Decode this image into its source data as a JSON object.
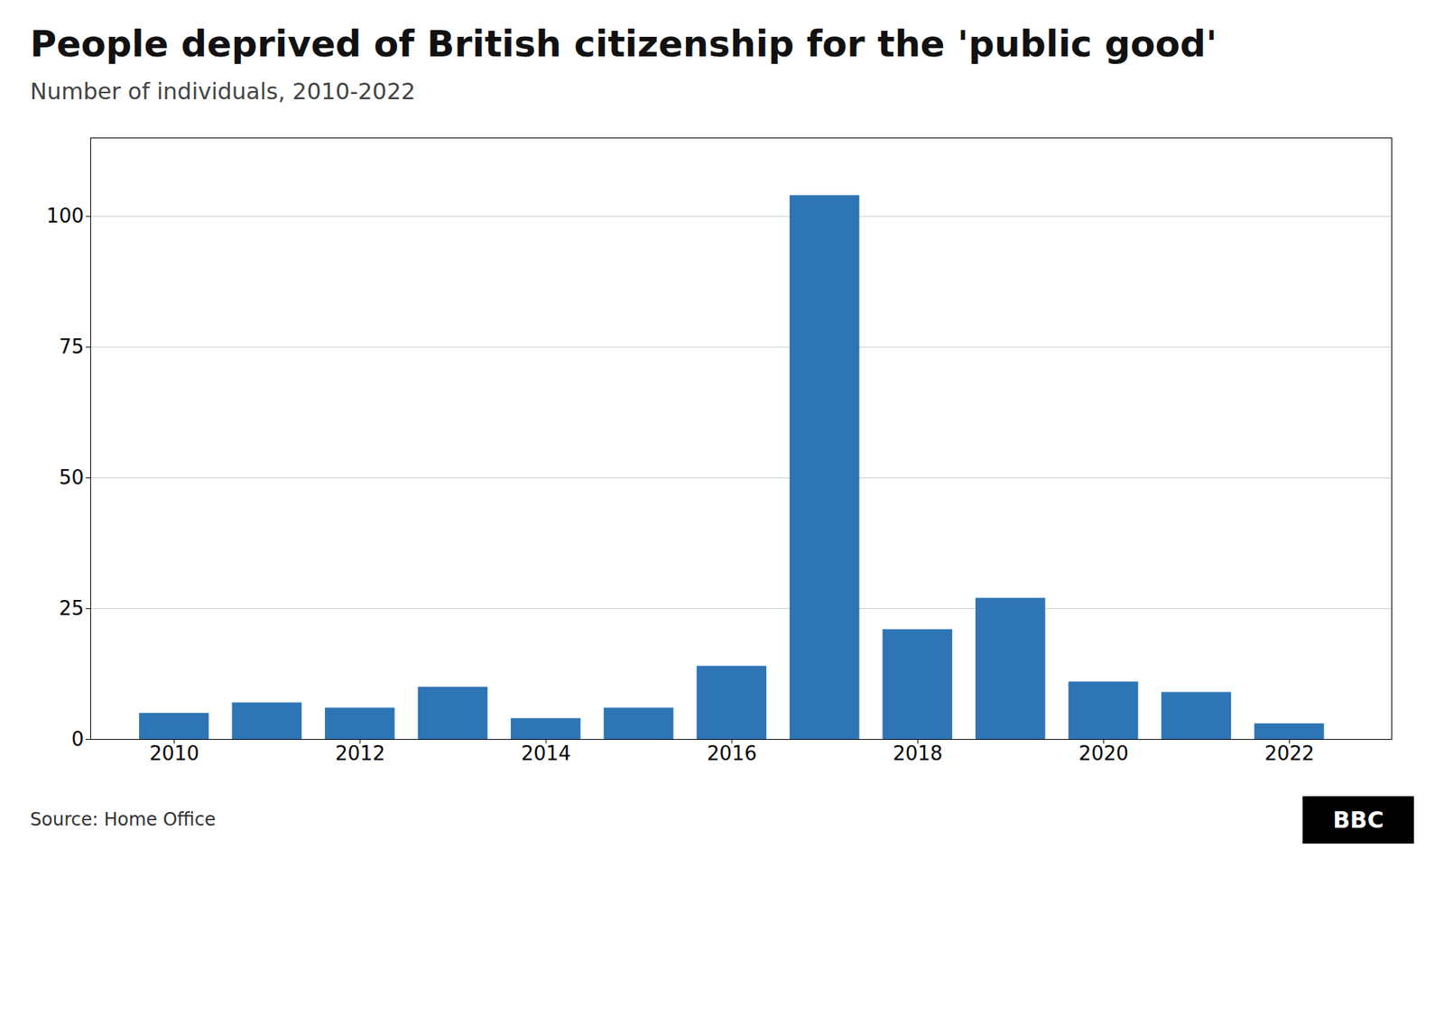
{
  "chart_data": {
    "type": "bar",
    "title": "People deprived of British citizenship for the 'public good'",
    "subtitle": "Number of individuals, 2010-2022",
    "source": "Source: Home Office",
    "annotations": [
      "BBC"
    ],
    "x": [
      2010,
      2011,
      2012,
      2013,
      2014,
      2015,
      2016,
      2017,
      2018,
      2019,
      2020,
      2021,
      2022
    ],
    "values": [
      5,
      7,
      6,
      10,
      4,
      6,
      14,
      104,
      21,
      27,
      11,
      9,
      3
    ],
    "color": "#2e75b6",
    "xlim": [
      2009.1,
      2023.1
    ],
    "xticks": [
      2010,
      2012,
      2014,
      2016,
      2018,
      2020,
      2022
    ],
    "ylim": [
      0,
      115
    ],
    "yticks": [
      0,
      25,
      50,
      75,
      100
    ],
    "grid": true
  }
}
